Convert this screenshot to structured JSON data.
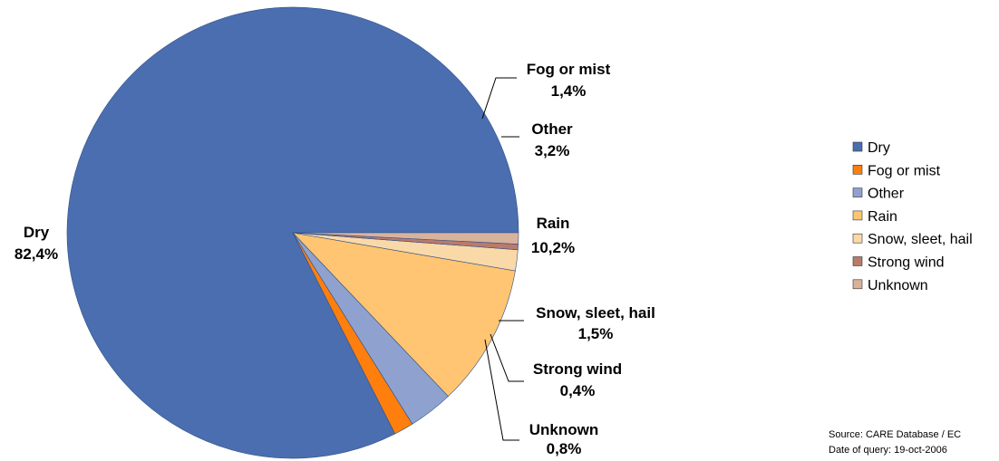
{
  "chart_data": {
    "type": "pie",
    "title": "",
    "start_angle_deg": 0,
    "direction": "counterclockwise",
    "legend_position": "right",
    "slices": [
      {
        "label": "Dry",
        "value": 82.4,
        "value_label": "82,4%",
        "color": "#4A6EB0"
      },
      {
        "label": "Fog or mist",
        "value": 1.4,
        "value_label": "1,4%",
        "color": "#FF7F0E"
      },
      {
        "label": "Other",
        "value": 3.2,
        "value_label": "3,2%",
        "color": "#8FA2CF"
      },
      {
        "label": "Rain",
        "value": 10.2,
        "value_label": "10,2%",
        "color": "#FFC572"
      },
      {
        "label": "Snow, sleet, hail",
        "value": 1.5,
        "value_label": "1,5%",
        "color": "#FAD9A9"
      },
      {
        "label": "Strong wind",
        "value": 0.4,
        "value_label": "0,4%",
        "color": "#B97B6A"
      },
      {
        "label": "Unknown",
        "value": 0.8,
        "value_label": "0,8%",
        "color": "#D9B29C"
      }
    ]
  },
  "legend": {
    "items": [
      "Dry",
      "Fog or mist",
      "Other",
      "Rain",
      "Snow, sleet, hail",
      "Strong wind",
      "Unknown"
    ]
  },
  "source": {
    "line1": "Source: CARE Database / EC",
    "line2": "Date of query: 19-oct-2006"
  }
}
